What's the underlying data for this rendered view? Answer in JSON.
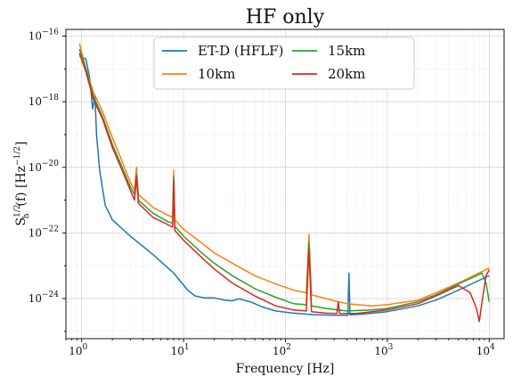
{
  "chart_data": {
    "type": "line",
    "title": "HF only",
    "xlabel": "Frequency [Hz]",
    "ylabel": {
      "main": "S",
      "sub": "h",
      "sup": "1/2",
      "arg": "(f) [Hz",
      "unit_sup": "−1/2",
      "close": "]"
    },
    "x_scale": "log",
    "y_scale": "log",
    "xlim": [
      0.7,
      14000
    ],
    "ylim": [
      6e-26,
      1.6e-16
    ],
    "grid": true,
    "legend_position": "top-center",
    "x_ticks": [
      {
        "value": 1,
        "label": "1",
        "exp": "0"
      },
      {
        "value": 10,
        "label": "1",
        "exp": "1"
      },
      {
        "value": 100,
        "label": "1",
        "exp": "2"
      },
      {
        "value": 1000,
        "label": "1",
        "exp": "3"
      },
      {
        "value": 10000,
        "label": "1",
        "exp": "4"
      }
    ],
    "y_ticks": [
      {
        "value": 1e-24,
        "label": "1",
        "exp": "−24"
      },
      {
        "value": 1e-22,
        "label": "1",
        "exp": "−22"
      },
      {
        "value": 1e-20,
        "label": "1",
        "exp": "−20"
      },
      {
        "value": 1e-18,
        "label": "1",
        "exp": "−18"
      },
      {
        "value": 1e-16,
        "label": "1",
        "exp": "−16"
      }
    ],
    "series": [
      {
        "name": "ET-D (HFLF)",
        "color": "#1f77b4",
        "points": [
          [
            0.95,
            2.5e-17
          ],
          [
            1.1,
            2e-17
          ],
          [
            1.2,
            5e-18
          ],
          [
            1.28,
            6e-19
          ],
          [
            1.35,
            1.5e-18
          ],
          [
            1.4,
            1e-19
          ],
          [
            1.5,
            8e-21
          ],
          [
            1.7,
            7e-22
          ],
          [
            2,
            2.5e-22
          ],
          [
            3,
            8e-23
          ],
          [
            5,
            2.2e-23
          ],
          [
            8,
            6e-24
          ],
          [
            11,
            1.8e-24
          ],
          [
            13,
            1.2e-24
          ],
          [
            16,
            1.05e-24
          ],
          [
            20,
            1.05e-24
          ],
          [
            25,
            9e-25
          ],
          [
            30,
            8.5e-25
          ],
          [
            35,
            9.8e-25
          ],
          [
            45,
            8e-25
          ],
          [
            60,
            5.5e-25
          ],
          [
            80,
            4.2e-25
          ],
          [
            120,
            3.6e-25
          ],
          [
            200,
            3.2e-25
          ],
          [
            300,
            3.1e-25
          ],
          [
            410,
            3.1e-25
          ],
          [
            420,
            6e-24
          ],
          [
            430,
            3.2e-25
          ],
          [
            600,
            3.4e-25
          ],
          [
            1000,
            4e-25
          ],
          [
            2000,
            6e-25
          ],
          [
            3000,
            9e-25
          ],
          [
            5000,
            1.8e-24
          ],
          [
            7000,
            3e-24
          ],
          [
            10000,
            5e-24
          ]
        ]
      },
      {
        "name": "10km",
        "color": "#ff7f0e",
        "points": [
          [
            0.95,
            6e-17
          ],
          [
            1.1,
            1e-17
          ],
          [
            1.3,
            2e-18
          ],
          [
            1.6,
            5e-19
          ],
          [
            2,
            8e-20
          ],
          [
            2.5,
            1.5e-20
          ],
          [
            3,
            3.5e-21
          ],
          [
            3.3,
            2e-21
          ],
          [
            3.45,
            1e-20
          ],
          [
            3.6,
            1.5e-21
          ],
          [
            5,
            6e-22
          ],
          [
            7,
            3.5e-22
          ],
          [
            7.8,
            3e-22
          ],
          [
            8,
            8e-21
          ],
          [
            8.2,
            2.5e-22
          ],
          [
            10,
            1.3e-22
          ],
          [
            15,
            5e-23
          ],
          [
            20,
            2.5e-23
          ],
          [
            30,
            1.2e-23
          ],
          [
            50,
            5e-24
          ],
          [
            80,
            2.8e-24
          ],
          [
            120,
            1.8e-24
          ],
          [
            160,
            1.5e-24
          ],
          [
            170,
            9e-23
          ],
          [
            180,
            1.3e-24
          ],
          [
            250,
            1e-24
          ],
          [
            330,
            8e-25
          ],
          [
            400,
            7e-25
          ],
          [
            700,
            6e-25
          ],
          [
            1000,
            6.5e-25
          ],
          [
            2000,
            9e-25
          ],
          [
            3000,
            1.5e-24
          ],
          [
            5000,
            3e-24
          ],
          [
            7000,
            5e-24
          ],
          [
            10000,
            8.5e-24
          ]
        ]
      },
      {
        "name": "15km",
        "color": "#2ca02c",
        "points": [
          [
            0.95,
            4e-17
          ],
          [
            1.1,
            1e-17
          ],
          [
            1.3,
            1.5e-18
          ],
          [
            1.6,
            3.5e-19
          ],
          [
            2,
            5e-20
          ],
          [
            2.5,
            1e-20
          ],
          [
            3,
            2.5e-21
          ],
          [
            3.3,
            1.5e-21
          ],
          [
            3.45,
            6e-21
          ],
          [
            3.6,
            1e-21
          ],
          [
            5,
            4e-22
          ],
          [
            7,
            2.2e-22
          ],
          [
            7.8,
            2e-22
          ],
          [
            8,
            5e-21
          ],
          [
            8.2,
            1.6e-22
          ],
          [
            10,
            8e-23
          ],
          [
            15,
            2.5e-23
          ],
          [
            20,
            1.2e-23
          ],
          [
            30,
            5e-24
          ],
          [
            50,
            2e-24
          ],
          [
            80,
            1.1e-24
          ],
          [
            120,
            7e-25
          ],
          [
            160,
            6.5e-25
          ],
          [
            170,
            5e-23
          ],
          [
            180,
            6e-25
          ],
          [
            250,
            5e-25
          ],
          [
            330,
            4.5e-25
          ],
          [
            400,
            4.2e-25
          ],
          [
            700,
            4.5e-25
          ],
          [
            1000,
            5e-25
          ],
          [
            2000,
            8e-25
          ],
          [
            3000,
            1.3e-24
          ],
          [
            5000,
            2.8e-24
          ],
          [
            7000,
            4.5e-24
          ],
          [
            8500,
            6e-24
          ],
          [
            9300,
            3e-24
          ],
          [
            10000,
            8e-25
          ]
        ]
      },
      {
        "name": "20km",
        "color": "#d62728",
        "points": [
          [
            0.95,
            3e-17
          ],
          [
            1.1,
            8e-18
          ],
          [
            1.3,
            1.2e-18
          ],
          [
            1.6,
            3e-19
          ],
          [
            2,
            4e-20
          ],
          [
            2.5,
            8e-21
          ],
          [
            3,
            2e-21
          ],
          [
            3.3,
            1e-21
          ],
          [
            3.45,
            5e-21
          ],
          [
            3.6,
            8e-22
          ],
          [
            5,
            3e-22
          ],
          [
            7,
            1.8e-22
          ],
          [
            7.8,
            1.5e-22
          ],
          [
            8,
            4e-21
          ],
          [
            8.2,
            1.2e-22
          ],
          [
            10,
            6e-23
          ],
          [
            15,
            1.8e-23
          ],
          [
            20,
            8e-24
          ],
          [
            30,
            3e-24
          ],
          [
            50,
            1.2e-24
          ],
          [
            80,
            6e-25
          ],
          [
            120,
            4.5e-25
          ],
          [
            160,
            4.2e-25
          ],
          [
            170,
            3e-23
          ],
          [
            180,
            4e-25
          ],
          [
            250,
            3.6e-25
          ],
          [
            320,
            3.5e-25
          ],
          [
            330,
            8e-25
          ],
          [
            340,
            3.5e-25
          ],
          [
            500,
            3.5e-25
          ],
          [
            1000,
            4.5e-25
          ],
          [
            2000,
            7e-25
          ],
          [
            3000,
            1.2e-24
          ],
          [
            5000,
            2.5e-24
          ],
          [
            6500,
            1.5e-24
          ],
          [
            7500,
            5e-25
          ],
          [
            8000,
            2e-25
          ],
          [
            8500,
            8e-25
          ],
          [
            9300,
            5e-24
          ],
          [
            10000,
            7.5e-24
          ]
        ]
      }
    ]
  }
}
